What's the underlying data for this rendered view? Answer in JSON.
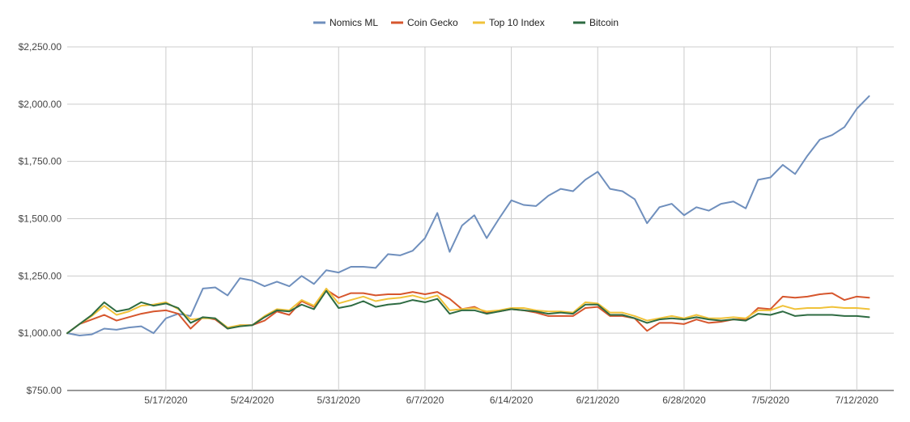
{
  "chart_data": {
    "type": "line",
    "title": "",
    "xlabel": "",
    "ylabel": "",
    "ylim": [
      750,
      2250
    ],
    "y_ticks": [
      750,
      1000,
      1250,
      1500,
      1750,
      2000,
      2250
    ],
    "y_tick_labels": [
      "$750.00",
      "$1,000.00",
      "$1,250.00",
      "$1,500.00",
      "$1,750.00",
      "$2,000.00",
      "$2,250.00"
    ],
    "x_start": "2020-05-09",
    "x_end": "2020-07-15",
    "x_ticks": [
      "2020-05-17",
      "2020-05-24",
      "2020-05-31",
      "2020-06-07",
      "2020-06-14",
      "2020-06-21",
      "2020-06-28",
      "2020-07-05",
      "2020-07-12"
    ],
    "x_tick_labels": [
      "5/17/2020",
      "5/24/2020",
      "5/31/2020",
      "6/7/2020",
      "6/14/2020",
      "6/21/2020",
      "6/28/2020",
      "7/5/2020",
      "7/12/2020"
    ],
    "grid": true,
    "legend_position": "top-center",
    "series": [
      {
        "name": "Nomics ML",
        "color": "#6f8fbd",
        "values": [
          1000,
          990,
          995,
          1020,
          1015,
          1025,
          1030,
          1000,
          1065,
          1085,
          1075,
          1195,
          1200,
          1165,
          1240,
          1230,
          1205,
          1225,
          1205,
          1250,
          1215,
          1275,
          1265,
          1290,
          1290,
          1285,
          1345,
          1340,
          1360,
          1415,
          1525,
          1355,
          1470,
          1515,
          1415,
          1500,
          1580,
          1560,
          1555,
          1600,
          1630,
          1620,
          1670,
          1705,
          1630,
          1620,
          1585,
          1480,
          1550,
          1565,
          1515,
          1550,
          1535,
          1565,
          1575,
          1545,
          1670,
          1680,
          1735,
          1695,
          1775,
          1845,
          1865,
          1900,
          1980,
          2035
        ]
      },
      {
        "name": "Coin Gecko",
        "color": "#d6562d",
        "values": [
          1000,
          1040,
          1060,
          1080,
          1055,
          1070,
          1085,
          1095,
          1100,
          1085,
          1020,
          1070,
          1060,
          1020,
          1035,
          1035,
          1055,
          1095,
          1080,
          1140,
          1115,
          1190,
          1155,
          1175,
          1175,
          1165,
          1170,
          1170,
          1180,
          1170,
          1180,
          1150,
          1105,
          1115,
          1090,
          1095,
          1105,
          1100,
          1090,
          1075,
          1075,
          1075,
          1110,
          1115,
          1075,
          1075,
          1065,
          1010,
          1045,
          1045,
          1040,
          1060,
          1045,
          1050,
          1060,
          1060,
          1110,
          1105,
          1160,
          1155,
          1160,
          1170,
          1175,
          1145,
          1160,
          1155
        ]
      },
      {
        "name": "Top 10 Index",
        "color": "#f0c239",
        "values": [
          1000,
          1040,
          1075,
          1120,
          1080,
          1095,
          1120,
          1125,
          1135,
          1105,
          1060,
          1065,
          1065,
          1025,
          1035,
          1035,
          1075,
          1105,
          1100,
          1145,
          1120,
          1195,
          1130,
          1145,
          1160,
          1140,
          1150,
          1155,
          1165,
          1150,
          1165,
          1100,
          1105,
          1110,
          1095,
          1100,
          1110,
          1110,
          1100,
          1095,
          1095,
          1090,
          1135,
          1130,
          1090,
          1090,
          1075,
          1055,
          1065,
          1075,
          1065,
          1080,
          1065,
          1065,
          1070,
          1065,
          1100,
          1100,
          1120,
          1105,
          1110,
          1110,
          1115,
          1110,
          1110,
          1105
        ]
      },
      {
        "name": "Bitcoin",
        "color": "#2e6b42",
        "values": [
          1000,
          1040,
          1080,
          1135,
          1095,
          1105,
          1135,
          1120,
          1130,
          1110,
          1045,
          1070,
          1065,
          1020,
          1030,
          1035,
          1070,
          1100,
          1095,
          1125,
          1105,
          1185,
          1110,
          1120,
          1140,
          1115,
          1125,
          1130,
          1145,
          1135,
          1150,
          1085,
          1100,
          1100,
          1085,
          1095,
          1105,
          1100,
          1095,
          1085,
          1090,
          1085,
          1125,
          1125,
          1080,
          1080,
          1065,
          1045,
          1060,
          1065,
          1060,
          1070,
          1060,
          1055,
          1060,
          1055,
          1085,
          1080,
          1095,
          1075,
          1080,
          1080,
          1080,
          1075,
          1075,
          1070
        ]
      }
    ]
  }
}
